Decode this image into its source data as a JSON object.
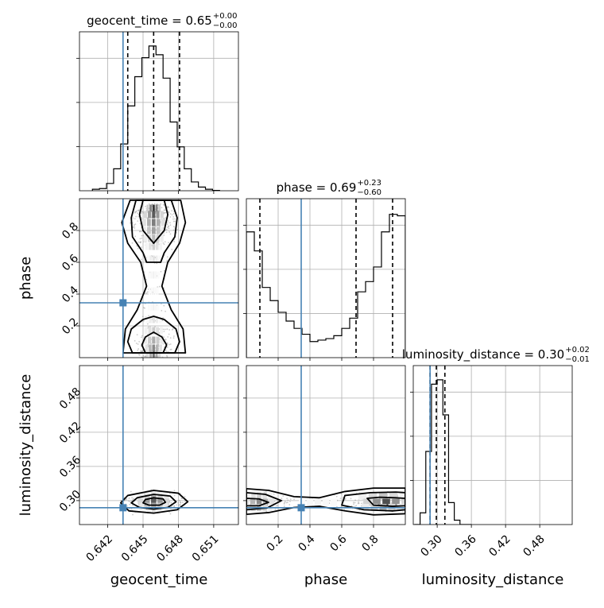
{
  "figure": {
    "type": "corner-plot"
  },
  "params": [
    "geocent_time",
    "phase",
    "luminosity_distance"
  ],
  "axis_labels": {
    "x": [
      "geocent_time",
      "phase",
      "luminosity_distance"
    ],
    "y": [
      "",
      "phase",
      "luminosity_distance"
    ]
  },
  "panel_titles": [
    {
      "prefix": "geocent_time = 0.65",
      "sup": "+0.00",
      "sub": "−0.00"
    },
    {
      "prefix": "phase = 0.69",
      "sup": "+0.23",
      "sub": "−0.60"
    },
    {
      "prefix": "luminosity_distance = 0.30",
      "sup": "+0.02",
      "sub": "−0.01"
    }
  ],
  "ticks": {
    "geocent_time": {
      "values": [
        0.642,
        0.645,
        0.648,
        0.651
      ],
      "labels": [
        "0.642",
        "0.645",
        "0.648",
        "0.651"
      ]
    },
    "phase": {
      "values": [
        0.2,
        0.4,
        0.6,
        0.8
      ],
      "labels": [
        "0.2",
        "0.4",
        "0.6",
        "0.8"
      ]
    },
    "luminosity_distance": {
      "values": [
        0.3,
        0.36,
        0.42,
        0.48
      ],
      "labels": [
        "0.30",
        "0.36",
        "0.42",
        "0.48"
      ]
    }
  },
  "ranges": {
    "geocent_time": [
      0.6396,
      0.6531
    ],
    "phase": [
      0.0,
      1.0
    ],
    "luminosity_distance": [
      0.258,
      0.537
    ]
  },
  "truth_color": "#4682b4",
  "contour_color": "#000000",
  "chart_data": {
    "type": "corner",
    "truths": {
      "geocent_time": 0.6433,
      "phase": 0.345,
      "luminosity_distance": 0.2875
    },
    "quantiles": {
      "geocent_time": [
        0.6437,
        0.6459,
        0.6481
      ],
      "phase": [
        0.085,
        0.69,
        0.92
      ],
      "luminosity_distance": [
        0.2875,
        0.2985,
        0.3135
      ]
    },
    "histograms": {
      "geocent_time": {
        "bin_edges": [
          0.6407,
          0.6413,
          0.6419,
          0.6425,
          0.6431,
          0.6437,
          0.6443,
          0.6449,
          0.6455,
          0.6461,
          0.6467,
          0.6473,
          0.6479,
          0.6485,
          0.6491,
          0.6497,
          0.6503,
          0.6509,
          0.6515
        ],
        "counts": [
          0.01,
          0.015,
          0.05,
          0.15,
          0.32,
          0.58,
          0.78,
          0.91,
          0.99,
          0.93,
          0.77,
          0.47,
          0.3,
          0.15,
          0.06,
          0.025,
          0.01,
          0.002
        ]
      },
      "phase": {
        "bin_edges": [
          0.0,
          0.05,
          0.1,
          0.15,
          0.2,
          0.25,
          0.3,
          0.35,
          0.4,
          0.45,
          0.5,
          0.55,
          0.6,
          0.65,
          0.7,
          0.75,
          0.8,
          0.85,
          0.9,
          0.95,
          1.0
        ],
        "counts": [
          0.86,
          0.73,
          0.48,
          0.39,
          0.31,
          0.25,
          0.2,
          0.16,
          0.11,
          0.12,
          0.13,
          0.15,
          0.2,
          0.27,
          0.45,
          0.52,
          0.62,
          0.86,
          0.98,
          0.97
        ]
      },
      "luminosity_distance": {
        "bin_edges": [
          0.26,
          0.27,
          0.28,
          0.29,
          0.3,
          0.31,
          0.32,
          0.33,
          0.34,
          0.35,
          0.36
        ],
        "counts": [
          0.0,
          0.08,
          0.5,
          0.96,
          0.99,
          0.75,
          0.15,
          0.03,
          0.0,
          0.0
        ]
      }
    },
    "densities": [
      {
        "x": "geocent_time",
        "y": "phase",
        "bands": [
          {
            "y": 0.94,
            "x": 0.6459,
            "w": 0.001,
            "level": 0.85
          },
          {
            "y": 0.9,
            "x": 0.6459,
            "w": 0.0014,
            "level": 0.7
          },
          {
            "y": 0.85,
            "x": 0.6459,
            "w": 0.0016,
            "level": 0.55
          },
          {
            "y": 0.8,
            "x": 0.6459,
            "w": 0.0016,
            "level": 0.4
          },
          {
            "y": 0.75,
            "x": 0.6459,
            "w": 0.0014,
            "level": 0.3
          },
          {
            "y": 0.7,
            "x": 0.6459,
            "w": 0.0012,
            "level": 0.2
          },
          {
            "y": 0.62,
            "x": 0.6459,
            "w": 0.001,
            "level": 0.12
          },
          {
            "y": 0.52,
            "x": 0.6459,
            "w": 0.0008,
            "level": 0.06
          },
          {
            "y": 0.42,
            "x": 0.6459,
            "w": 0.0007,
            "level": 0.04
          },
          {
            "y": 0.32,
            "x": 0.6459,
            "w": 0.0008,
            "level": 0.06
          },
          {
            "y": 0.24,
            "x": 0.6459,
            "w": 0.0011,
            "level": 0.12
          },
          {
            "y": 0.17,
            "x": 0.6459,
            "w": 0.0013,
            "level": 0.22
          },
          {
            "y": 0.11,
            "x": 0.6459,
            "w": 0.0014,
            "level": 0.35
          },
          {
            "y": 0.06,
            "x": 0.6459,
            "w": 0.0012,
            "level": 0.5
          },
          {
            "y": 0.02,
            "x": 0.6459,
            "w": 0.001,
            "level": 0.6
          }
        ]
      },
      {
        "x": "geocent_time",
        "y": "luminosity_distance",
        "bands": [
          {
            "y": 0.312,
            "x": 0.6459,
            "w": 0.002,
            "level": 0.1
          },
          {
            "y": 0.304,
            "x": 0.6459,
            "w": 0.0022,
            "level": 0.35
          },
          {
            "y": 0.297,
            "x": 0.6459,
            "w": 0.0022,
            "level": 0.7
          },
          {
            "y": 0.29,
            "x": 0.6459,
            "w": 0.002,
            "level": 0.4
          },
          {
            "y": 0.283,
            "x": 0.6459,
            "w": 0.0016,
            "level": 0.12
          }
        ]
      },
      {
        "x": "phase",
        "y": "luminosity_distance",
        "bands": [
          {
            "y": 0.308,
            "x": 0.08,
            "w": 0.14,
            "level": 0.2
          },
          {
            "y": 0.297,
            "x": 0.08,
            "w": 0.16,
            "level": 0.5
          },
          {
            "y": 0.288,
            "x": 0.08,
            "w": 0.14,
            "level": 0.25
          },
          {
            "y": 0.308,
            "x": 0.86,
            "w": 0.26,
            "level": 0.25
          },
          {
            "y": 0.297,
            "x": 0.88,
            "w": 0.24,
            "level": 0.75
          },
          {
            "y": 0.288,
            "x": 0.86,
            "w": 0.22,
            "level": 0.3
          },
          {
            "y": 0.297,
            "x": 0.45,
            "w": 0.2,
            "level": 0.05
          }
        ]
      }
    ],
    "contours": [
      {
        "x": "geocent_time",
        "y": "phase",
        "levels": [
          {
            "points": [
              [
                0.645,
                0.99
              ],
              [
                0.6468,
                0.99
              ],
              [
                0.6471,
                0.9
              ],
              [
                0.6468,
                0.8
              ],
              [
                0.6459,
                0.72
              ],
              [
                0.645,
                0.8
              ],
              [
                0.6447,
                0.9
              ]
            ]
          },
          {
            "points": [
              [
                0.6444,
                0.99
              ],
              [
                0.6474,
                0.99
              ],
              [
                0.6479,
                0.88
              ],
              [
                0.6477,
                0.76
              ],
              [
                0.6468,
                0.66
              ],
              [
                0.6465,
                0.6
              ],
              [
                0.6453,
                0.6
              ],
              [
                0.645,
                0.66
              ],
              [
                0.6441,
                0.76
              ],
              [
                0.644,
                0.88
              ]
            ]
          },
          {
            "points": [
              [
                0.6452,
                0.03
              ],
              [
                0.6467,
                0.03
              ],
              [
                0.647,
                0.08
              ],
              [
                0.6466,
                0.13
              ],
              [
                0.6459,
                0.16
              ],
              [
                0.6452,
                0.13
              ],
              [
                0.6449,
                0.08
              ]
            ]
          },
          {
            "points": [
              [
                0.6441,
                0.03
              ],
              [
                0.6477,
                0.03
              ],
              [
                0.6481,
                0.1
              ],
              [
                0.6478,
                0.18
              ],
              [
                0.6468,
                0.24
              ],
              [
                0.6459,
                0.26
              ],
              [
                0.645,
                0.24
              ],
              [
                0.644,
                0.18
              ],
              [
                0.6437,
                0.1
              ]
            ]
          },
          {
            "points": [
              [
                0.6439,
                0.99
              ],
              [
                0.6482,
                0.99
              ],
              [
                0.6486,
                0.85
              ],
              [
                0.6481,
                0.72
              ],
              [
                0.6471,
                0.6
              ],
              [
                0.6466,
                0.45
              ],
              [
                0.6474,
                0.3
              ],
              [
                0.6484,
                0.18
              ],
              [
                0.6486,
                0.03
              ],
              [
                0.6433,
                0.03
              ],
              [
                0.6435,
                0.18
              ],
              [
                0.6445,
                0.3
              ],
              [
                0.6453,
                0.45
              ],
              [
                0.6448,
                0.6
              ],
              [
                0.6437,
                0.72
              ],
              [
                0.6432,
                0.85
              ]
            ]
          }
        ]
      },
      {
        "x": "geocent_time",
        "y": "luminosity_distance",
        "levels": [
          {
            "points": [
              [
                0.6452,
                0.302
              ],
              [
                0.6459,
                0.305
              ],
              [
                0.6467,
                0.303
              ],
              [
                0.6469,
                0.297
              ],
              [
                0.6464,
                0.292
              ],
              [
                0.6455,
                0.292
              ],
              [
                0.645,
                0.296
              ]
            ]
          },
          {
            "points": [
              [
                0.6445,
                0.305
              ],
              [
                0.6459,
                0.311
              ],
              [
                0.6473,
                0.308
              ],
              [
                0.6478,
                0.298
              ],
              [
                0.6471,
                0.288
              ],
              [
                0.6459,
                0.285
              ],
              [
                0.6447,
                0.288
              ],
              [
                0.644,
                0.296
              ]
            ]
          },
          {
            "points": [
              [
                0.6437,
                0.309
              ],
              [
                0.6459,
                0.318
              ],
              [
                0.648,
                0.313
              ],
              [
                0.6488,
                0.298
              ],
              [
                0.6479,
                0.284
              ],
              [
                0.6459,
                0.278
              ],
              [
                0.6438,
                0.282
              ],
              [
                0.6431,
                0.296
              ]
            ]
          }
        ]
      },
      {
        "x": "phase",
        "y": "luminosity_distance",
        "levels": [
          {
            "points": [
              [
                0.0,
                0.304
              ],
              [
                0.08,
                0.303
              ],
              [
                0.14,
                0.297
              ],
              [
                0.08,
                0.291
              ],
              [
                0.0,
                0.291
              ]
            ]
          },
          {
            "points": [
              [
                0.0,
                0.314
              ],
              [
                0.12,
                0.311
              ],
              [
                0.22,
                0.3
              ],
              [
                0.13,
                0.287
              ],
              [
                0.0,
                0.284
              ]
            ]
          },
          {
            "points": [
              [
                0.76,
                0.304
              ],
              [
                0.84,
                0.306
              ],
              [
                0.94,
                0.305
              ],
              [
                1.0,
                0.304
              ],
              [
                1.0,
                0.291
              ],
              [
                0.92,
                0.29
              ],
              [
                0.8,
                0.292
              ]
            ]
          },
          {
            "points": [
              [
                0.62,
                0.309
              ],
              [
                0.78,
                0.314
              ],
              [
                0.94,
                0.315
              ],
              [
                1.0,
                0.314
              ],
              [
                1.0,
                0.284
              ],
              [
                0.92,
                0.282
              ],
              [
                0.74,
                0.284
              ],
              [
                0.6,
                0.292
              ]
            ]
          },
          {
            "points": [
              [
                0.0,
                0.321
              ],
              [
                0.14,
                0.318
              ],
              [
                0.3,
                0.307
              ],
              [
                0.46,
                0.305
              ],
              [
                0.62,
                0.316
              ],
              [
                0.8,
                0.322
              ],
              [
                1.0,
                0.322
              ],
              [
                1.0,
                0.277
              ],
              [
                0.8,
                0.275
              ],
              [
                0.62,
                0.282
              ],
              [
                0.46,
                0.29
              ],
              [
                0.3,
                0.288
              ],
              [
                0.14,
                0.279
              ],
              [
                0.0,
                0.276
              ]
            ]
          }
        ]
      }
    ]
  }
}
